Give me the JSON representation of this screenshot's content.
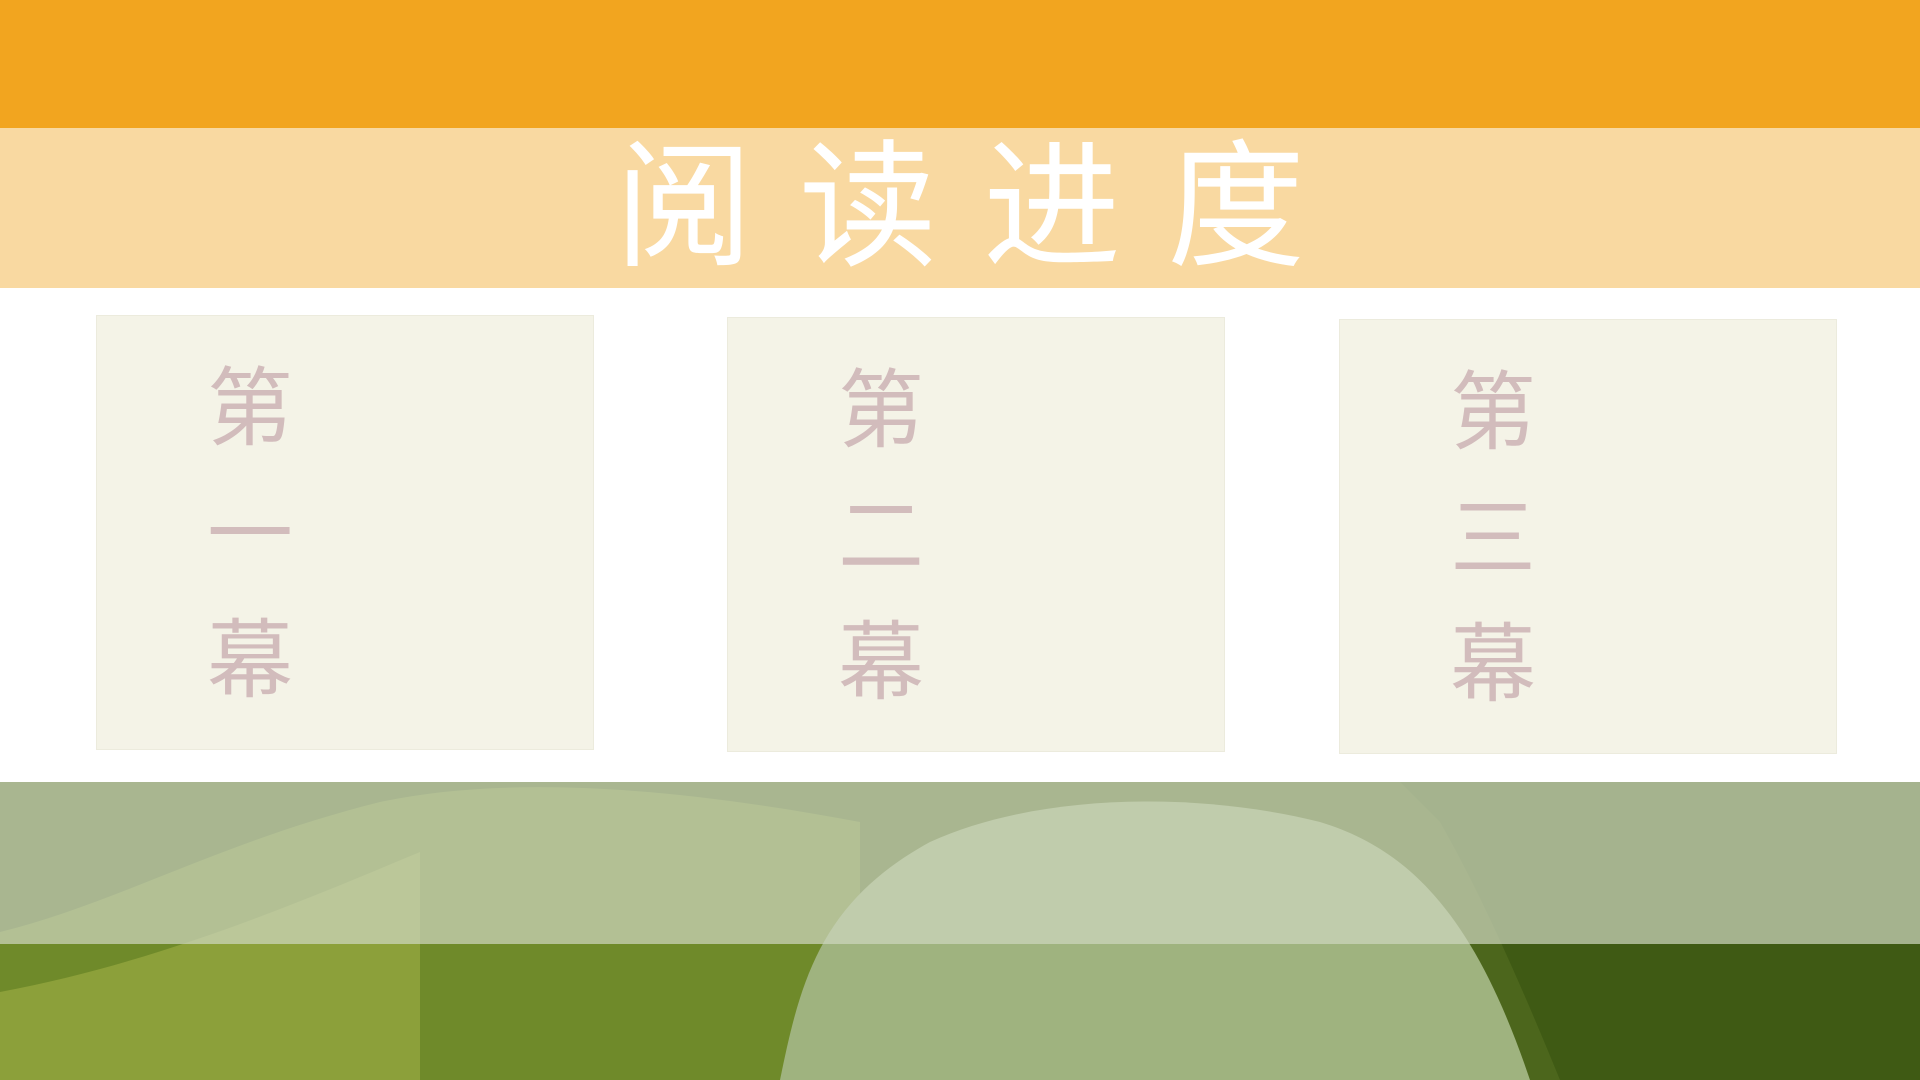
{
  "title": "阅读进度",
  "cards": [
    {
      "label": "第一幕"
    },
    {
      "label": "第二幕"
    },
    {
      "label": "第三幕"
    }
  ],
  "colors": {
    "top_band": "#f2a51f",
    "title_band": "#f9d9a1",
    "card_background": "#f4f3e7",
    "card_text": "#d2bcbc",
    "title_text": "#ffffff",
    "bottom_dark": "#4f6a1e",
    "bottom_light": "#cdd6be"
  }
}
